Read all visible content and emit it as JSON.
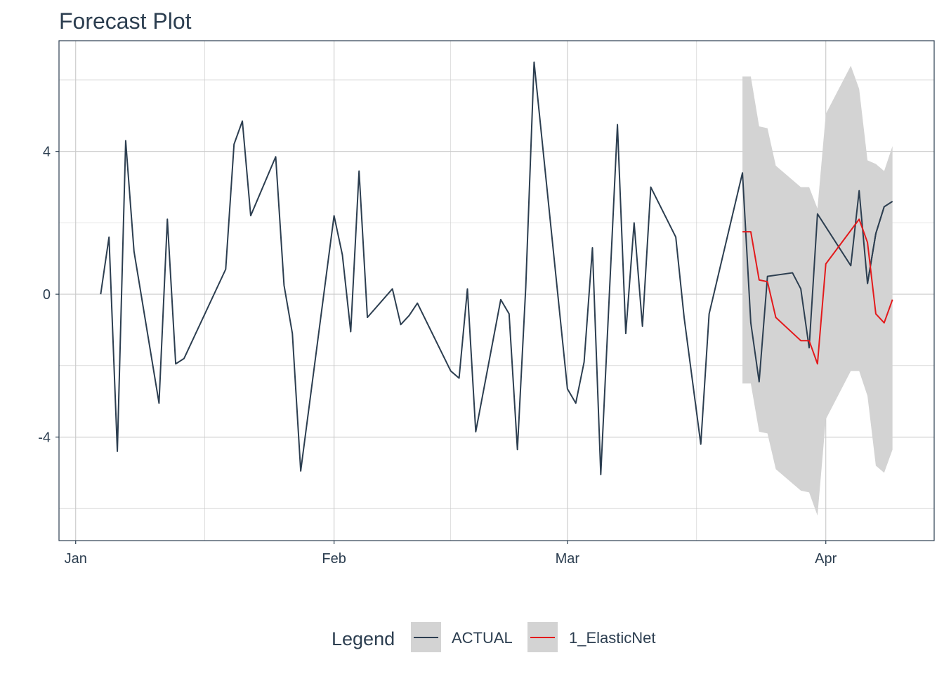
{
  "chart_data": {
    "type": "line",
    "title": "Forecast Plot",
    "xlabel": "",
    "ylabel": "",
    "x_ticks": [
      {
        "label": "Jan",
        "date": "2015-01-01"
      },
      {
        "label": "Feb",
        "date": "2015-02-01"
      },
      {
        "label": "Mar",
        "date": "2015-03-01"
      },
      {
        "label": "Apr",
        "date": "2015-04-01"
      }
    ],
    "y_ticks": [
      -4,
      0,
      4
    ],
    "xlim": [
      "2014-12-30",
      "2015-04-14"
    ],
    "ylim": [
      -6.9,
      7.1
    ],
    "grid": true,
    "legend": {
      "title": "Legend",
      "position": "bottom",
      "entries": [
        "ACTUAL",
        "1_ElasticNet"
      ]
    },
    "colors": {
      "actual": "#2c3e50",
      "forecast": "#e31a1c",
      "interval": "#d3d3d3",
      "grid": "#c9c9c9",
      "text": "#2c3e50"
    },
    "series": [
      {
        "name": "ACTUAL",
        "x": [
          "2015-01-04",
          "2015-01-05",
          "2015-01-06",
          "2015-01-07",
          "2015-01-08",
          "2015-01-11",
          "2015-01-12",
          "2015-01-13",
          "2015-01-14",
          "2015-01-19",
          "2015-01-20",
          "2015-01-21",
          "2015-01-22",
          "2015-01-25",
          "2015-01-26",
          "2015-01-27",
          "2015-01-28",
          "2015-02-01",
          "2015-02-02",
          "2015-02-03",
          "2015-02-04",
          "2015-02-05",
          "2015-02-08",
          "2015-02-09",
          "2015-02-10",
          "2015-02-11",
          "2015-02-15",
          "2015-02-16",
          "2015-02-17",
          "2015-02-18",
          "2015-02-21",
          "2015-02-22",
          "2015-02-23",
          "2015-02-24",
          "2015-02-25",
          "2015-03-01",
          "2015-03-02",
          "2015-03-03",
          "2015-03-04",
          "2015-03-05",
          "2015-03-07",
          "2015-03-08",
          "2015-03-09",
          "2015-03-10",
          "2015-03-11",
          "2015-03-14",
          "2015-03-15",
          "2015-03-17",
          "2015-03-18",
          "2015-03-22",
          "2015-03-23",
          "2015-03-24",
          "2015-03-25",
          "2015-03-28",
          "2015-03-29",
          "2015-03-30",
          "2015-03-31",
          "2015-04-04",
          "2015-04-05",
          "2015-04-06",
          "2015-04-07",
          "2015-04-08"
        ],
        "values": [
          0.0,
          1.6,
          -4.4,
          4.3,
          1.2,
          -3.05,
          2.1,
          -1.95,
          -1.8,
          0.7,
          4.2,
          4.85,
          2.2,
          3.85,
          0.25,
          -1.1,
          -4.95,
          2.2,
          1.1,
          -1.05,
          3.45,
          -0.65,
          0.15,
          -0.85,
          -0.6,
          -0.25,
          -2.15,
          -2.35,
          0.15,
          -3.85,
          -0.15,
          -0.55,
          -4.35,
          0.2,
          6.5,
          -2.65,
          -3.05,
          -1.9,
          1.3,
          -5.05,
          4.75,
          -1.1,
          2.0,
          -0.9,
          3.0,
          1.6,
          -0.65,
          -4.2,
          -0.55,
          3.4,
          -0.8,
          -2.45,
          0.5,
          0.6,
          0.15,
          -1.5,
          2.25,
          0.8,
          2.9,
          0.3,
          1.7,
          2.45
        ]
      },
      {
        "name": "1_ElasticNet",
        "x": [
          "2015-03-22",
          "2015-03-23",
          "2015-03-24",
          "2015-03-25",
          "2015-03-26",
          "2015-03-29",
          "2015-03-30",
          "2015-03-31",
          "2015-04-01",
          "2015-04-05",
          "2015-04-06",
          "2015-04-07",
          "2015-04-08",
          "2015-04-09"
        ],
        "values": [
          1.75,
          1.75,
          0.4,
          0.35,
          -0.65,
          -1.3,
          -1.3,
          -1.95,
          0.85,
          2.1,
          1.45,
          -0.55,
          -0.8,
          -0.15
        ]
      }
    ],
    "actual_extra": {
      "x": [
        "2015-04-06",
        "2015-04-07",
        "2015-04-08",
        "2015-04-09"
      ],
      "values": [
        0.3,
        1.7,
        2.45,
        2.6
      ]
    },
    "interval": {
      "x": [
        "2015-03-22",
        "2015-03-23",
        "2015-03-24",
        "2015-03-25",
        "2015-03-26",
        "2015-03-29",
        "2015-03-30",
        "2015-03-31",
        "2015-04-01",
        "2015-04-04",
        "2015-04-05",
        "2015-04-06",
        "2015-04-07",
        "2015-04-08",
        "2015-04-09"
      ],
      "upper": [
        6.1,
        6.1,
        4.7,
        4.65,
        3.6,
        3.0,
        3.0,
        2.4,
        5.05,
        6.4,
        5.75,
        3.75,
        3.65,
        3.45,
        4.15
      ],
      "lower": [
        -2.5,
        -2.5,
        -3.85,
        -3.9,
        -4.9,
        -5.5,
        -5.55,
        -6.2,
        -3.5,
        -2.15,
        -2.15,
        -2.85,
        -4.8,
        -5.0,
        -4.35
      ]
    }
  }
}
